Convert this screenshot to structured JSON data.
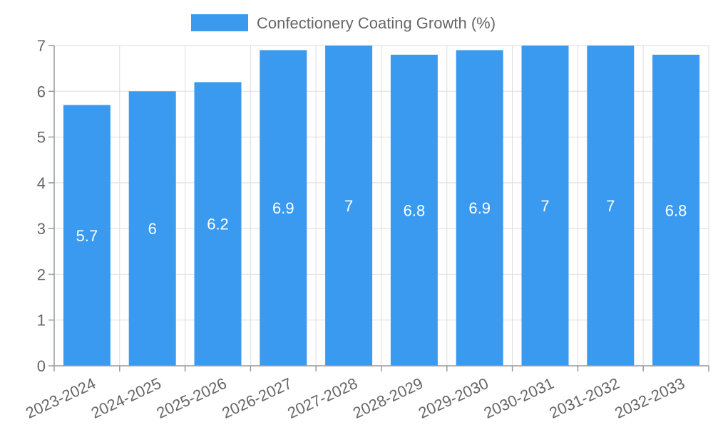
{
  "chart_data": {
    "type": "bar",
    "title": "",
    "xlabel": "",
    "ylabel": "",
    "categories": [
      "2023-2024",
      "2024-2025",
      "2025-2026",
      "2026-2027",
      "2027-2028",
      "2028-2029",
      "2029-2030",
      "2030-2031",
      "2031-2032",
      "2032-2033"
    ],
    "series": [
      {
        "name": "Confectionery Coating Growth (%)",
        "values": [
          5.7,
          6,
          6.2,
          6.9,
          7,
          6.8,
          6.9,
          7,
          7,
          6.8
        ],
        "color": "#3a9af0"
      }
    ],
    "ylim": [
      0,
      7
    ],
    "yticks": [
      0,
      1,
      2,
      3,
      4,
      5,
      6,
      7
    ],
    "grid": true,
    "legend": "top-center",
    "data_labels": [
      "5.7",
      "6",
      "6.2",
      "6.9",
      "7",
      "6.8",
      "6.9",
      "7",
      "7",
      "6.8"
    ]
  }
}
